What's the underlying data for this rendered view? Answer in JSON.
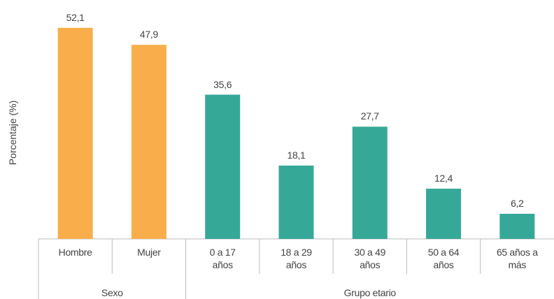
{
  "chart_data": {
    "type": "bar",
    "y_label": "Porcentaje (%)",
    "categories": [
      "Hombre",
      "Mujer",
      "0 a 17 años",
      "18 a 29 años",
      "30 a 49 años",
      "50 a 64 años",
      "65 años a más"
    ],
    "values": [
      52.1,
      47.9,
      35.6,
      18.1,
      27.7,
      12.4,
      6.2
    ],
    "value_labels": [
      "52,1",
      "47,9",
      "35,6",
      "18,1",
      "27,7",
      "12,4",
      "6,2"
    ],
    "colors": [
      "#f9ae4b",
      "#f9ae4b",
      "#36a897",
      "#36a897",
      "#36a897",
      "#36a897",
      "#36a897"
    ],
    "groups": [
      {
        "name": "Sexo",
        "count": 2
      },
      {
        "name": "Grupo etario",
        "count": 5
      }
    ],
    "ylim": [
      0,
      55
    ]
  }
}
